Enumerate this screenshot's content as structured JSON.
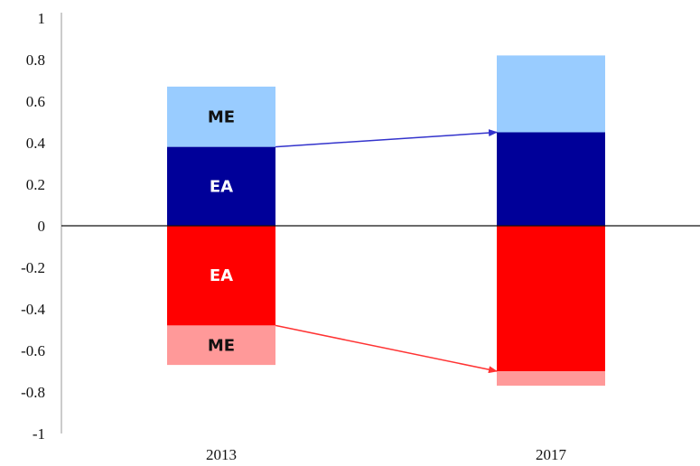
{
  "chart_data": {
    "type": "bar",
    "stacked": true,
    "title": "",
    "xlabel": "",
    "ylabel": "",
    "ylim": [
      -1,
      1
    ],
    "yticks": [
      1,
      0.8,
      0.6,
      0.4,
      0.2,
      0,
      -0.2,
      -0.4,
      -0.6,
      -0.8,
      -1
    ],
    "ytick_labels": [
      "1",
      "0.8",
      "0.6",
      "0.4",
      "0.2",
      "0",
      "-0.2",
      "-0.4",
      "-0.6",
      "-0.8",
      "-1"
    ],
    "categories": [
      "2013",
      "2017"
    ],
    "grid": false,
    "legend": "none",
    "series": [
      {
        "values": [
          0.38,
          0.45
        ],
        "color": "#000099",
        "labels": [
          "EA",
          ""
        ]
      },
      {
        "values": [
          0.29,
          0.37
        ],
        "color": "#99CCFF",
        "labels": [
          "ME",
          ""
        ]
      },
      {
        "values": [
          -0.48,
          -0.7
        ],
        "color": "#FF0000",
        "labels": [
          "EA",
          ""
        ]
      },
      {
        "values": [
          -0.19,
          -0.07
        ],
        "color": "#FF9999",
        "labels": [
          "ME",
          ""
        ]
      }
    ],
    "arrows": [
      {
        "from_category": "2013",
        "to_category": "2017",
        "from_value": 0.38,
        "to_value": 0.45,
        "color": "#3333CC"
      },
      {
        "from_category": "2013",
        "to_category": "2017",
        "from_value": -0.48,
        "to_value": -0.7,
        "color": "#FF3333"
      }
    ]
  }
}
